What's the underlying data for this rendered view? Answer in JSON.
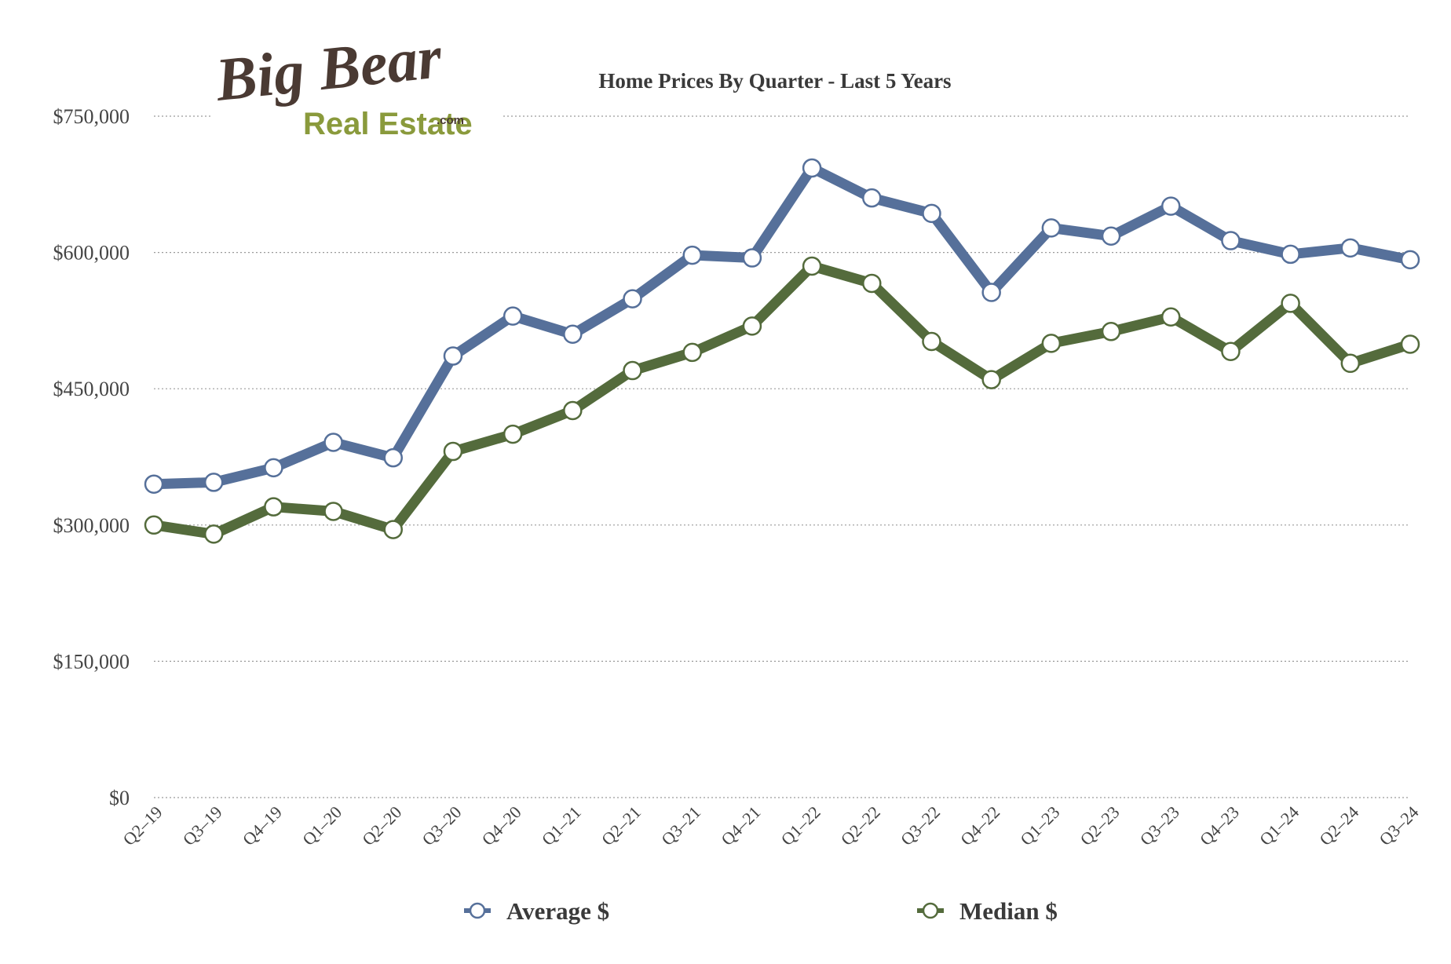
{
  "logo": {
    "line1": "Big Bear",
    "line2": "Real Estate",
    "suffix": ".com"
  },
  "chart_data": {
    "type": "line",
    "title": "Home Prices By Quarter - Last 5 Years",
    "xlabel": "",
    "ylabel": "",
    "ylim": [
      0,
      750000
    ],
    "yticks": [
      0,
      150000,
      300000,
      450000,
      600000,
      750000
    ],
    "ytick_labels": [
      "$0",
      "$150,000",
      "$300,000",
      "$450,000",
      "$600,000",
      "$750,000"
    ],
    "grid": true,
    "legend_position": "bottom",
    "categories": [
      "Q2–19",
      "Q3–19",
      "Q4–19",
      "Q1–20",
      "Q2–20",
      "Q3–20",
      "Q4–20",
      "Q1–21",
      "Q2–21",
      "Q3–21",
      "Q4–21",
      "Q1–22",
      "Q2–22",
      "Q3–22",
      "Q4–22",
      "Q1–23",
      "Q2–23",
      "Q3–23",
      "Q4–23",
      "Q1–24",
      "Q2–24",
      "Q3–24"
    ],
    "series": [
      {
        "name": "Average $",
        "color": "#56709a",
        "values": [
          345000,
          347000,
          363000,
          391000,
          374000,
          486000,
          530000,
          510000,
          549000,
          597000,
          594000,
          693000,
          660000,
          643000,
          556000,
          627000,
          618000,
          651000,
          613000,
          598000,
          605000,
          592000
        ]
      },
      {
        "name": "Median $",
        "color": "#546b3c",
        "values": [
          300000,
          290000,
          320000,
          315000,
          295000,
          381000,
          400000,
          426000,
          470000,
          490000,
          519000,
          585000,
          566000,
          502000,
          460000,
          500000,
          513000,
          529000,
          491000,
          544000,
          478000,
          499000
        ]
      }
    ]
  }
}
